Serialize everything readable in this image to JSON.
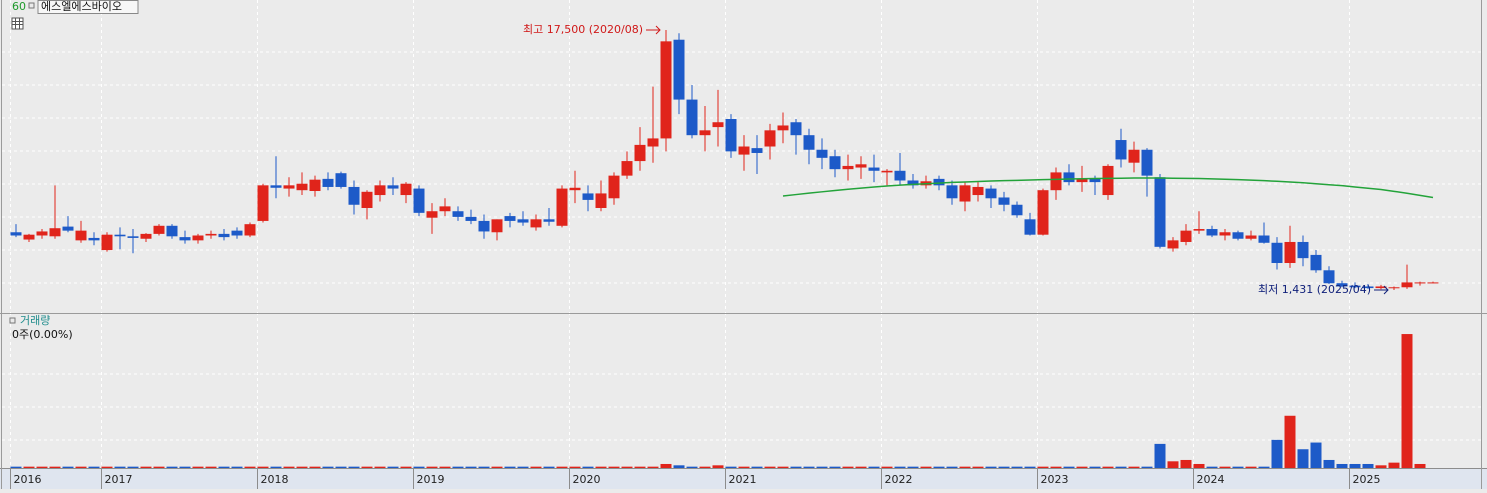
{
  "chart_data": {
    "type": "candlestick",
    "title": "에스엘에스바이오",
    "period_label": "60",
    "up_color": "#e0241b",
    "down_color": "#1d5ac8",
    "categories": [
      "2016",
      null,
      null,
      null,
      null,
      null,
      null,
      "2017",
      null,
      null,
      null,
      null,
      null,
      null,
      null,
      null,
      null,
      null,
      null,
      "2018",
      null,
      null,
      null,
      null,
      null,
      null,
      null,
      null,
      null,
      null,
      null,
      "2019",
      null,
      null,
      null,
      null,
      null,
      null,
      null,
      null,
      null,
      null,
      null,
      "2020",
      null,
      null,
      null,
      null,
      null,
      null,
      null,
      null,
      null,
      null,
      null,
      "2021",
      null,
      null,
      null,
      null,
      null,
      null,
      null,
      null,
      null,
      null,
      null,
      "2022",
      null,
      null,
      null,
      null,
      null,
      null,
      null,
      null,
      null,
      null,
      null,
      "2023",
      null,
      null,
      null,
      null,
      null,
      null,
      null,
      null,
      null,
      null,
      null,
      "2024",
      null,
      null,
      null,
      null,
      null,
      null,
      null,
      null,
      null,
      null,
      null,
      "2025",
      null,
      null,
      null,
      null,
      null,
      null
    ],
    "open": [
      5000,
      4550,
      4800,
      4750,
      5350,
      4500,
      4650,
      3900,
      4850,
      4750,
      4600,
      4900,
      5400,
      4700,
      4500,
      4800,
      4900,
      5100,
      4800,
      5700,
      7900,
      7700,
      7600,
      7550,
      8300,
      8650,
      7800,
      6500,
      7300,
      7900,
      7300,
      7700,
      5900,
      6300,
      6300,
      5950,
      5700,
      5000,
      6000,
      5800,
      5300,
      5800,
      5400,
      7600,
      7400,
      6500,
      7100,
      8500,
      9400,
      10300,
      10800,
      16900,
      13200,
      11000,
      11500,
      12000,
      9800,
      10200,
      10300,
      11300,
      11800,
      11000,
      10100,
      9700,
      8900,
      9000,
      9000,
      8700,
      8800,
      8200,
      7900,
      8300,
      7900,
      6900,
      7300,
      7700,
      7150,
      6700,
      5800,
      4850,
      7600,
      8700,
      8100,
      8300,
      7300,
      10700,
      9300,
      10100,
      8400,
      4000,
      4400,
      5100,
      5200,
      4800,
      5000,
      4600,
      4800,
      4350,
      3100,
      4400,
      3600,
      2650,
      1850,
      1700,
      1650,
      1550,
      1550,
      1600,
      1850,
      1900
    ],
    "high": [
      5500,
      4900,
      5200,
      7900,
      6000,
      5700,
      5000,
      5000,
      5300,
      5200,
      4950,
      5500,
      5500,
      5100,
      4900,
      5100,
      5200,
      5300,
      5600,
      8000,
      9700,
      8400,
      8700,
      8500,
      8700,
      8750,
      8200,
      7600,
      8200,
      8400,
      8100,
      7900,
      6800,
      7100,
      6600,
      6400,
      6100,
      5800,
      6200,
      6300,
      6100,
      6500,
      7900,
      8800,
      7900,
      8200,
      8700,
      10000,
      11500,
      14000,
      17500,
      17300,
      14100,
      12800,
      13800,
      12300,
      11000,
      11000,
      11700,
      12400,
      12000,
      11400,
      10800,
      10100,
      9800,
      9700,
      9800,
      8900,
      9900,
      8600,
      8500,
      8500,
      8200,
      8100,
      8100,
      7900,
      7500,
      6900,
      6200,
      7700,
      9000,
      9200,
      9100,
      8500,
      9200,
      11400,
      10600,
      10200,
      8600,
      4700,
      5500,
      6300,
      5400,
      5200,
      5100,
      5100,
      5600,
      4700,
      5400,
      4800,
      3900,
      2900,
      2000,
      1900,
      1800,
      1750,
      1650,
      3000,
      1950,
      1950
    ],
    "low": [
      4700,
      4400,
      4600,
      4600,
      5000,
      4350,
      4200,
      3800,
      3950,
      3700,
      4400,
      4800,
      4600,
      4300,
      4300,
      4600,
      4500,
      4600,
      4700,
      5600,
      7100,
      7200,
      7300,
      7200,
      7600,
      7700,
      6100,
      5800,
      6900,
      7300,
      6800,
      6000,
      4900,
      6000,
      5700,
      5500,
      4600,
      4500,
      5300,
      5400,
      5100,
      5400,
      5300,
      6800,
      6300,
      6300,
      6700,
      8300,
      8800,
      9300,
      10000,
      12300,
      10800,
      10000,
      10300,
      9600,
      8800,
      8600,
      9500,
      10500,
      9800,
      9200,
      8900,
      8400,
      8200,
      8300,
      8100,
      7900,
      7900,
      7700,
      7700,
      7600,
      6700,
      6300,
      6900,
      6500,
      6300,
      5900,
      4800,
      4800,
      7000,
      7900,
      7500,
      7300,
      7000,
      9000,
      8700,
      7200,
      4000,
      3800,
      4200,
      4900,
      4700,
      4500,
      4500,
      4500,
      4300,
      2700,
      2800,
      2900,
      2500,
      1800,
      1600,
      1550,
      1500,
      1480,
      1431,
      1500,
      1700,
      1850
    ],
    "close": [
      4800,
      4850,
      5050,
      5250,
      5100,
      5100,
      4500,
      4850,
      4750,
      4650,
      4900,
      5400,
      4750,
      4500,
      4800,
      4900,
      4700,
      4800,
      5500,
      7900,
      7750,
      7900,
      8000,
      8250,
      7800,
      7800,
      6700,
      7500,
      7900,
      7700,
      8000,
      6200,
      6300,
      6600,
      5950,
      5700,
      5050,
      5800,
      5700,
      5600,
      5800,
      5650,
      7700,
      7750,
      7000,
      7400,
      8500,
      9400,
      10400,
      10800,
      16800,
      13200,
      11000,
      11300,
      11800,
      10000,
      10300,
      9900,
      11300,
      11600,
      11000,
      10100,
      9600,
      8900,
      9100,
      9200,
      8800,
      8800,
      8200,
      7900,
      8150,
      7900,
      7100,
      7900,
      7800,
      7100,
      6700,
      6050,
      4850,
      7600,
      8700,
      8100,
      8300,
      8100,
      9100,
      9500,
      10100,
      8500,
      4100,
      4500,
      5100,
      5200,
      4800,
      5000,
      4600,
      4800,
      4350,
      3100,
      4400,
      3400,
      2650,
      1850,
      1650,
      1600,
      1550,
      1650,
      1600,
      1900,
      1900,
      1900
    ],
    "ylim": [
      10,
      19355
    ],
    "ma": {
      "color": "#23a33a",
      "values": [
        null,
        null,
        null,
        null,
        null,
        null,
        null,
        null,
        null,
        null,
        null,
        null,
        null,
        null,
        null,
        null,
        null,
        null,
        null,
        null,
        null,
        null,
        null,
        null,
        null,
        null,
        null,
        null,
        null,
        null,
        null,
        null,
        null,
        null,
        null,
        null,
        null,
        null,
        null,
        null,
        null,
        null,
        null,
        null,
        null,
        null,
        null,
        null,
        null,
        null,
        null,
        null,
        null,
        null,
        null,
        null,
        null,
        null,
        null,
        7240,
        7330,
        7420,
        7500,
        7580,
        7660,
        7730,
        7800,
        7860,
        7910,
        7960,
        8000,
        8040,
        8080,
        8110,
        8140,
        8170,
        8190,
        8210,
        8230,
        8250,
        8270,
        8290,
        8310,
        8320,
        8330,
        8340,
        8350,
        8350,
        8350,
        8340,
        8330,
        8320,
        8300,
        8280,
        8250,
        8220,
        8190,
        8150,
        8110,
        8060,
        8000,
        7940,
        7880,
        7800,
        7720,
        7640,
        7530,
        7410,
        7280,
        7150
      ]
    },
    "high_label": "최고 17,500 (2020/08)",
    "low_label": "최저 1,431 (2025/04)",
    "volume": {
      "label": "거래량",
      "status": "0주(0.00%)",
      "vlim": [
        0,
        109
      ],
      "values": [
        1,
        1,
        1,
        1,
        1,
        1,
        1,
        1,
        1,
        1,
        1,
        1,
        1,
        1,
        1,
        1,
        1,
        1,
        1,
        1,
        1,
        1,
        1,
        1,
        1,
        1,
        1,
        1,
        1,
        1,
        1,
        1,
        1,
        1,
        1,
        1,
        1,
        1,
        1,
        1,
        1,
        1,
        1,
        1,
        1,
        1,
        1,
        1,
        1,
        1,
        3,
        2,
        1,
        1,
        2,
        1,
        1,
        1,
        1,
        1,
        1,
        1,
        1,
        1,
        1,
        1,
        1,
        1,
        1,
        1,
        1,
        1,
        1,
        1,
        1,
        1,
        1,
        1,
        1,
        1,
        1,
        1,
        1,
        1,
        1,
        1,
        1,
        1,
        18,
        5,
        6,
        3,
        1,
        1,
        1,
        1,
        1,
        21,
        39,
        14,
        19,
        6,
        3,
        3,
        3,
        2,
        4,
        100,
        3,
        0
      ]
    }
  }
}
